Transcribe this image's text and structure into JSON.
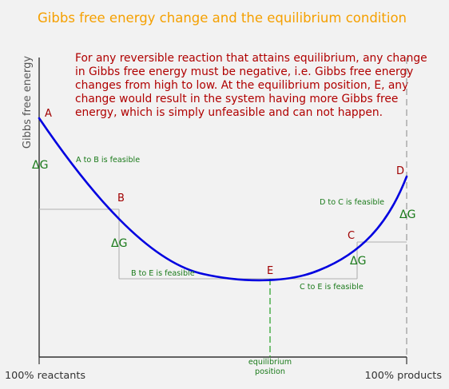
{
  "title": "Gibbs free energy change and the equilibrium condition",
  "description_lines": [
    "For any reversible reaction that attains equilibrium, any change",
    "in Gibbs free energy must be negative, i.e. Gibbs free energy",
    "changes from high to low. At the equilibrium position, E, any",
    "change would result in the system having more Gibbs free",
    "energy, which is simply unfeasible and can not happen."
  ],
  "y_axis_label": "Gibbs free energy",
  "x_axis": {
    "left_label": "100% reactants",
    "right_label": "100% products",
    "equilibrium_label_line1": "equilibrium",
    "equilibrium_label_line2": "position"
  },
  "points": {
    "A": "A",
    "B": "B",
    "C": "C",
    "D": "D",
    "E": "E"
  },
  "delta_g": "ΔG",
  "transitions": {
    "a_to_b": "A to B is feasible",
    "b_to_e": "B to E is feasible",
    "c_to_e": "C to E is feasible",
    "d_to_c": "D to C is feasible"
  },
  "colors": {
    "title": "#f5a000",
    "description": "#b00000",
    "curve": "#0000e0",
    "point_label": "#a00000",
    "feasible_text": "#1a7a1a",
    "equilibrium_line": "#20a020",
    "axis": "#333333",
    "guide": "#b0b0b0"
  }
}
